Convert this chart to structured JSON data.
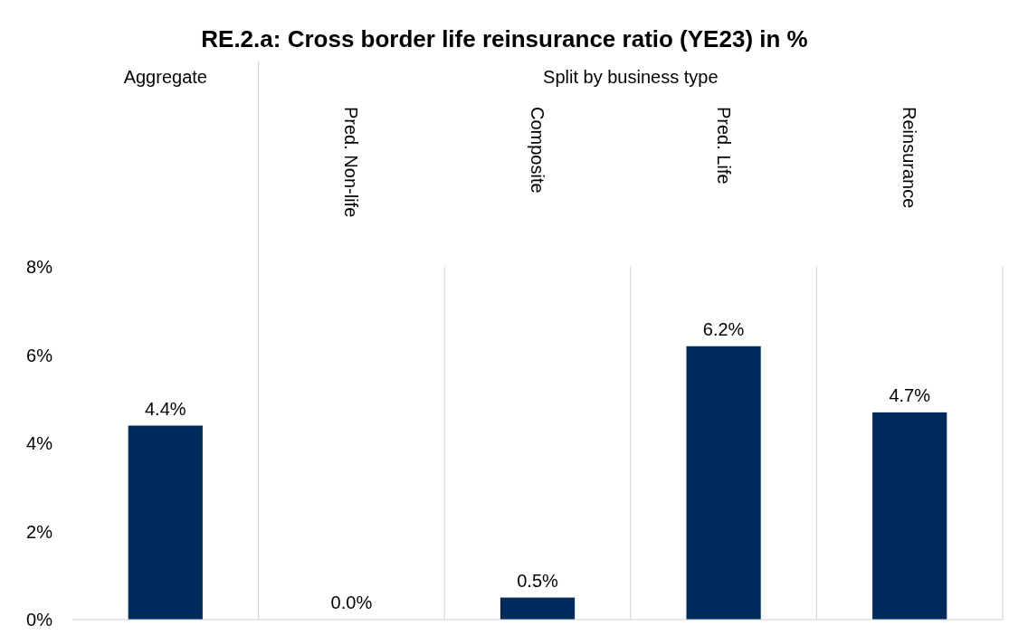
{
  "chart_data": {
    "type": "bar",
    "title": "RE.2.a: Cross border life reinsurance ratio (YE23) in %",
    "categories": [
      null,
      "Pred. Non-life",
      "Composite",
      "Pred. Life",
      "Reinsurance"
    ],
    "values": [
      4.4,
      0.0,
      0.5,
      6.2,
      4.7
    ],
    "value_labels": [
      "4.4%",
      "0.0%",
      "0.5%",
      "6.2%",
      "4.7%"
    ],
    "color": "#002b5c",
    "ylim": [
      0,
      8
    ],
    "yticks": [
      {
        "value": 0,
        "label": "0%"
      },
      {
        "value": 2,
        "label": "2%"
      },
      {
        "value": 4,
        "label": "4%"
      },
      {
        "value": 6,
        "label": "6%"
      },
      {
        "value": 8,
        "label": "8%"
      }
    ],
    "grid": "x",
    "annotations": [
      "Aggregate",
      "Split by business type"
    ]
  }
}
